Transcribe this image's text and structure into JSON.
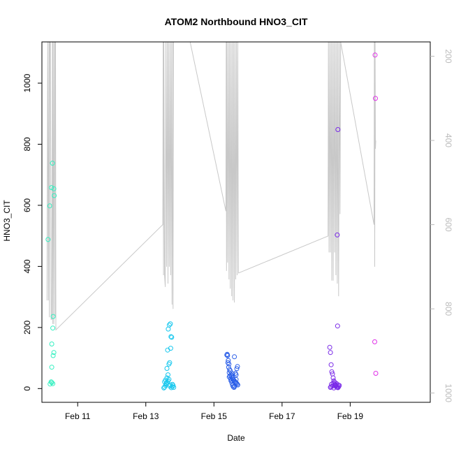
{
  "chart_data": {
    "type": "scatter",
    "title": "ATOM2 Northbound HNO3_CIT",
    "xlabel": "Date",
    "ylabel": "HNO3_CIT",
    "x_unit": "days since Feb 9",
    "xlim": [
      9.95,
      21.35
    ],
    "ylim": [
      -45,
      1135
    ],
    "x_ticks": [
      11,
      13,
      15,
      17,
      19
    ],
    "x_tick_labels": [
      "Feb 11",
      "Feb 13",
      "Feb 15",
      "Feb 17",
      "Feb 19"
    ],
    "y_ticks": [
      0,
      200,
      400,
      600,
      800,
      1000
    ],
    "y_tick_labels": [
      "0",
      "200",
      "400",
      "600",
      "800",
      "1000"
    ],
    "y2_label": "",
    "y2_reversed": true,
    "y2_ylim": [
      1022,
      166
    ],
    "y2_ticks": [
      200,
      400,
      600,
      800,
      1000
    ],
    "y2_tick_labels": [
      "200",
      "400",
      "600",
      "800",
      "1000"
    ],
    "grid": false,
    "legend": "none",
    "colors": {
      "day_feb10": "#33f0c0",
      "day_feb13": "#19c8ee",
      "day_feb15": "#2a5ee8",
      "day_feb18": "#7a2ae8",
      "day_feb19": "#e030e8",
      "altitude_line": "#c8c8c8",
      "axis": "#000000",
      "y2_axis": "#bbbbbb"
    },
    "series": [
      {
        "color_key": "day_feb10",
        "x": [
          10.13,
          10.18,
          10.23,
          10.26,
          10.3,
          10.31,
          10.28,
          10.27,
          10.24,
          10.3,
          10.28,
          10.24,
          10.22,
          10.19,
          10.27,
          10.24
        ],
        "y": [
          488,
          598,
          658,
          738,
          654,
          632,
          236,
          198,
          146,
          118,
          108,
          70,
          22,
          15,
          16,
          20
        ]
      },
      {
        "color_key": "day_feb13",
        "x": [
          13.53,
          13.55,
          13.58,
          13.6,
          13.63,
          13.65,
          13.68,
          13.7,
          13.72,
          13.75,
          13.78,
          13.58,
          13.62,
          13.65,
          13.68,
          13.7,
          13.73,
          13.76,
          13.74,
          13.72,
          13.69,
          13.66,
          13.64,
          13.62,
          13.6,
          13.55,
          13.78,
          13.8,
          13.82
        ],
        "y": [
          2,
          5,
          10,
          15,
          20,
          25,
          30,
          8,
          12,
          3,
          6,
          28,
          35,
          45,
          80,
          85,
          132,
          168,
          170,
          212,
          208,
          195,
          126,
          66,
          18,
          22,
          14,
          10,
          4
        ]
      },
      {
        "color_key": "day_feb15",
        "x": [
          15.38,
          15.4,
          15.42,
          15.44,
          15.46,
          15.48,
          15.5,
          15.52,
          15.54,
          15.56,
          15.58,
          15.6,
          15.62,
          15.64,
          15.66,
          15.68,
          15.7,
          15.39,
          15.41,
          15.43,
          15.45,
          15.47,
          15.49,
          15.51,
          15.53,
          15.55,
          15.57,
          15.59,
          15.61,
          15.63,
          15.65,
          15.67,
          15.69,
          15.45,
          15.5,
          15.55,
          15.6,
          15.65
        ],
        "y": [
          110,
          108,
          92,
          80,
          62,
          58,
          45,
          40,
          35,
          30,
          28,
          25,
          22,
          20,
          18,
          15,
          12,
          112,
          85,
          70,
          52,
          42,
          32,
          25,
          18,
          10,
          6,
          4,
          8,
          50,
          45,
          65,
          72,
          38,
          26,
          48,
          104,
          30
        ]
      },
      {
        "color_key": "day_feb18",
        "x": [
          18.4,
          18.42,
          18.44,
          18.46,
          18.48,
          18.5,
          18.52,
          18.54,
          18.56,
          18.58,
          18.6,
          18.62,
          18.64,
          18.66,
          18.68,
          18.45,
          18.5,
          18.55,
          18.6,
          18.65,
          18.48,
          18.44,
          18.42,
          18.52,
          18.58,
          18.62,
          18.64
        ],
        "y": [
          135,
          118,
          78,
          55,
          48,
          35,
          25,
          15,
          12,
          8,
          5,
          4,
          3,
          6,
          10,
          14,
          18,
          20,
          16,
          12,
          8,
          6,
          4,
          2,
          10,
          503,
          848
        ]
      },
      {
        "color_key": "day_feb18",
        "x": [
          18.63
        ],
        "y": [
          205
        ]
      },
      {
        "color_key": "day_feb19",
        "x": [
          19.73,
          19.74,
          19.72,
          19.75
        ],
        "y": [
          1092,
          950,
          153,
          50
        ]
      }
    ],
    "altitude_series": {
      "axis": "y2",
      "color_key": "altitude_line",
      "x": [
        10.1,
        10.12,
        10.14,
        10.16,
        10.17,
        10.18,
        10.2,
        10.22,
        10.24,
        10.26,
        10.27,
        10.28,
        10.3,
        10.32,
        10.33,
        10.34,
        10.35,
        10.36,
        13.5,
        13.51,
        13.52,
        13.53,
        13.55,
        13.57,
        13.59,
        13.61,
        13.63,
        13.65,
        13.67,
        13.69,
        13.71,
        13.73,
        13.75,
        13.77,
        13.79,
        13.8,
        13.81,
        13.82,
        14.25,
        14.3,
        15.35,
        15.36,
        15.37,
        15.38,
        15.4,
        15.42,
        15.44,
        15.46,
        15.48,
        15.5,
        15.52,
        15.54,
        15.56,
        15.58,
        15.6,
        15.62,
        15.64,
        15.66,
        15.68,
        15.7,
        15.72,
        18.35,
        18.36,
        18.38,
        18.4,
        18.42,
        18.44,
        18.46,
        18.48,
        18.5,
        18.52,
        18.54,
        18.56,
        18.58,
        18.6,
        18.62,
        18.64,
        18.66,
        18.68,
        18.7,
        18.72,
        19.7,
        19.71,
        19.72,
        19.73,
        19.74,
        19.75
      ],
      "y": [
        780,
        166,
        780,
        166,
        820,
        166,
        166,
        825,
        825,
        166,
        836,
        166,
        836,
        166,
        166,
        820,
        166,
        850,
        600,
        166,
        720,
        166,
        720,
        748,
        166,
        700,
        166,
        740,
        166,
        700,
        166,
        720,
        166,
        790,
        166,
        800,
        166,
        166,
        166,
        166,
        568,
        166,
        710,
        166,
        690,
        166,
        730,
        166,
        752,
        166,
        770,
        166,
        780,
        166,
        785,
        166,
        730,
        166,
        720,
        166,
        715,
        627,
        166,
        666,
        166,
        666,
        166,
        733,
        166,
        733,
        166,
        666,
        166,
        720,
        166,
        740,
        166,
        770,
        166,
        575,
        166,
        600,
        166,
        700,
        166,
        420,
        400
      ]
    }
  }
}
